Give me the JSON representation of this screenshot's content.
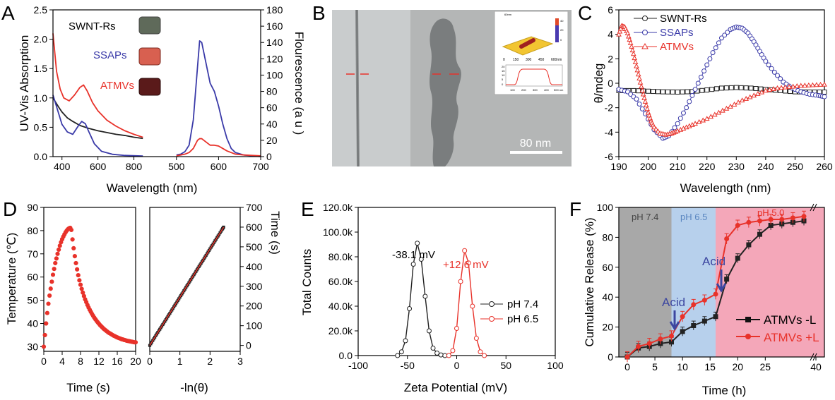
{
  "panels": {
    "A": {
      "label": "A",
      "ylabel_left": "UV-Vis Absorption",
      "ylabel_right": "Flourescence (a u )",
      "xlabel": "Wavelength (nm)",
      "legend": [
        "SWNT-Rs",
        "SSAPs",
        "ATMVs"
      ]
    },
    "B": {
      "label": "B",
      "scalebar": "80 nm",
      "inset_axis": [
        "0",
        "150",
        "300",
        "450",
        "600nm"
      ],
      "inset_zbar": [
        "60nm",
        "40",
        "20",
        "0"
      ],
      "inset_profile_axis": [
        "100",
        "200",
        "300",
        "400",
        "500 nm"
      ],
      "inset_profile_yaxis": [
        "20",
        "15",
        "10",
        "5",
        "0"
      ]
    },
    "C": {
      "label": "C",
      "ylabel": "θ/mdeg",
      "xlabel": "Wavelength (nm)",
      "legend": [
        "SWNT-Rs",
        "SSAPs",
        "ATMVs"
      ]
    },
    "D": {
      "label": "D",
      "ylabel_left": "Temperature (℃)",
      "xlabel_left": "Time (s)",
      "ylabel_right": "Time (s)",
      "xlabel_right": "-ln(θ)"
    },
    "E": {
      "label": "E",
      "ylabel": "Total Counts",
      "xlabel": "Zeta Potential (mV)",
      "legend": [
        "pH 7.4",
        "pH 6.5"
      ],
      "ann1": "-38.1 mV",
      "ann2": "+12.6 mV"
    },
    "F": {
      "label": "F",
      "ylabel": "Cumulative Release (%)",
      "xlabel": "Time (h)",
      "legend": [
        "ATMVs -L",
        "ATMVs +L"
      ],
      "zone1": "pH 7.4",
      "zone2": "pH 6.5",
      "zone3": "pH 5.0",
      "arrow1": "Acid",
      "arrow2": "Acid"
    }
  },
  "colors": {
    "black": "#222222",
    "blue": "#3a3aa8",
    "red": "#e8322a",
    "zone_gray": "#a8a8a8",
    "zone_blue": "#b7d0ec",
    "zone_pink": "#f4a7b9",
    "arrow": "#3c46a0"
  },
  "chart_data": [
    {
      "id": "A-absorption",
      "type": "line",
      "xlim": [
        350,
        900
      ],
      "ylim": [
        0,
        2.5
      ],
      "xticks": [
        400,
        600,
        800
      ],
      "yticks": [
        0.0,
        0.5,
        1.0,
        1.5,
        2.0,
        2.5
      ],
      "series": [
        {
          "name": "SWNT-Rs",
          "color": "black",
          "x": [
            350,
            380,
            400,
            430,
            460,
            500,
            550,
            600,
            650,
            700,
            750,
            800,
            850
          ],
          "y": [
            1.0,
            0.85,
            0.76,
            0.66,
            0.6,
            0.53,
            0.48,
            0.44,
            0.41,
            0.38,
            0.36,
            0.33,
            0.31
          ]
        },
        {
          "name": "SSAPs",
          "color": "blue",
          "x": [
            350,
            380,
            400,
            430,
            460,
            490,
            510,
            530,
            550,
            580,
            620,
            680,
            750,
            850
          ],
          "y": [
            1.05,
            0.75,
            0.55,
            0.42,
            0.38,
            0.52,
            0.6,
            0.56,
            0.42,
            0.22,
            0.09,
            0.04,
            0.02,
            0.01
          ]
        },
        {
          "name": "ATMVs",
          "color": "red",
          "x": [
            350,
            370,
            390,
            410,
            440,
            470,
            500,
            520,
            540,
            570,
            600,
            650,
            700,
            750,
            800,
            850
          ],
          "y": [
            2.1,
            1.45,
            1.15,
            1.0,
            0.95,
            1.05,
            1.18,
            1.22,
            1.12,
            0.92,
            0.78,
            0.62,
            0.52,
            0.44,
            0.38,
            0.33
          ]
        }
      ]
    },
    {
      "id": "A-fluorescence",
      "type": "line",
      "xlim": [
        450,
        700
      ],
      "ylim": [
        0,
        180
      ],
      "xticks": [
        500,
        600,
        700
      ],
      "yticks": [
        0,
        20,
        40,
        60,
        80,
        100,
        120,
        140,
        160,
        180
      ],
      "series": [
        {
          "name": "SSAPs",
          "color": "blue",
          "x": [
            500,
            510,
            520,
            530,
            540,
            550,
            555,
            560,
            570,
            580,
            590,
            600,
            610,
            620,
            630,
            640,
            660,
            680,
            700
          ],
          "y": [
            2,
            3,
            6,
            14,
            45,
            110,
            142,
            140,
            115,
            90,
            80,
            62,
            40,
            22,
            10,
            5,
            2,
            1,
            0
          ]
        },
        {
          "name": "ATMVs",
          "color": "red",
          "x": [
            500,
            510,
            520,
            530,
            540,
            550,
            555,
            560,
            570,
            580,
            590,
            600,
            610,
            620,
            640,
            660,
            700
          ],
          "y": [
            1,
            2,
            3,
            5,
            10,
            20,
            22,
            22,
            18,
            14,
            14,
            13,
            10,
            7,
            3,
            2,
            1
          ]
        }
      ]
    },
    {
      "id": "C-cd",
      "type": "scatter",
      "xlim": [
        190,
        260
      ],
      "ylim": [
        -6,
        6
      ],
      "xticks": [
        190,
        200,
        210,
        220,
        230,
        240,
        250,
        260
      ],
      "yticks": [
        -6,
        -4,
        -2,
        0,
        2,
        4,
        6
      ],
      "series": [
        {
          "name": "SWNT-Rs",
          "color": "black",
          "x": [
            190,
            195,
            200,
            205,
            210,
            215,
            220,
            225,
            230,
            235,
            240,
            245,
            250,
            255,
            260
          ],
          "y": [
            -0.6,
            -0.6,
            -0.65,
            -0.7,
            -0.72,
            -0.68,
            -0.55,
            -0.4,
            -0.35,
            -0.4,
            -0.5,
            -0.6,
            -0.7,
            -0.72,
            -0.72
          ]
        },
        {
          "name": "SSAPs",
          "color": "blue",
          "x": [
            190,
            193,
            196,
            199,
            202,
            205,
            207,
            210,
            213,
            216,
            219,
            222,
            225,
            228,
            230,
            232,
            234,
            236,
            238,
            240,
            243,
            246,
            249,
            252,
            255,
            258,
            260
          ],
          "y": [
            -0.5,
            -0.7,
            -1.3,
            -2.5,
            -3.8,
            -4.5,
            -4.3,
            -3.3,
            -2.0,
            -0.5,
            1.0,
            2.5,
            3.7,
            4.4,
            4.6,
            4.5,
            4.1,
            3.4,
            2.6,
            1.8,
            0.9,
            0.1,
            -0.4,
            -0.7,
            -0.9,
            -1.0,
            -1.1
          ]
        },
        {
          "name": "ATMVs",
          "color": "red",
          "x": [
            190,
            191,
            192,
            193,
            194,
            195,
            196,
            197,
            198,
            199,
            200,
            201,
            202,
            204,
            206,
            208,
            210,
            213,
            216,
            220,
            224,
            228,
            232,
            236,
            240,
            244,
            248,
            252,
            256,
            260
          ],
          "y": [
            4.0,
            4.7,
            4.6,
            4.1,
            3.3,
            2.4,
            1.4,
            0.4,
            -0.6,
            -1.5,
            -2.4,
            -3.1,
            -3.6,
            -4.1,
            -4.2,
            -4.1,
            -3.9,
            -3.6,
            -3.3,
            -2.9,
            -2.4,
            -1.9,
            -1.4,
            -1.0,
            -0.6,
            -0.4,
            -0.3,
            -0.2,
            -0.15,
            -0.1
          ]
        }
      ]
    },
    {
      "id": "D-heating",
      "type": "scatter",
      "xlim": [
        0,
        20
      ],
      "ylim": [
        28,
        90
      ],
      "xticks": [
        0,
        4,
        8,
        12,
        16,
        20
      ],
      "yticks": [
        30,
        40,
        50,
        60,
        70,
        80,
        90
      ],
      "series": [
        {
          "name": "",
          "color": "red",
          "x": [
            0,
            0.25,
            0.5,
            0.75,
            1,
            1.25,
            1.5,
            1.75,
            2,
            2.25,
            2.5,
            2.75,
            3,
            3.25,
            3.5,
            3.75,
            4,
            4.25,
            4.5,
            4.75,
            5,
            5.25,
            5.5,
            5.75,
            6,
            6.25,
            6.5,
            6.75,
            7,
            7.25,
            7.5,
            7.75,
            8,
            8.25,
            8.5,
            8.75,
            9,
            9.25,
            9.5,
            9.75,
            10,
            10.25,
            10.5,
            10.75,
            11,
            11.25,
            11.5,
            11.75,
            12,
            12.25,
            12.5,
            12.75,
            13,
            13.25,
            13.5,
            13.75,
            14,
            14.25,
            14.5,
            14.75,
            15,
            15.25,
            15.5,
            15.75,
            16,
            16.25,
            16.5,
            16.75,
            17,
            17.25,
            17.5,
            17.75,
            18,
            18.25,
            18.5,
            18.75,
            19,
            19.25,
            19.5,
            19.75,
            20
          ],
          "y": [
            30,
            35,
            40,
            44.5,
            48.5,
            52,
            55,
            58,
            61,
            63.5,
            66,
            68,
            70,
            71.8,
            73.5,
            75,
            76.3,
            77.4,
            78.4,
            79.3,
            80,
            80.6,
            81,
            81.2,
            80.3,
            76.2,
            72.4,
            69.0,
            66.0,
            63.3,
            60.8,
            58.6,
            56.7,
            54.9,
            53.3,
            51.8,
            50.4,
            49.2,
            48.0,
            46.9,
            45.9,
            45.0,
            44.1,
            43.3,
            42.5,
            41.8,
            41.1,
            40.5,
            39.9,
            39.3,
            38.8,
            38.3,
            37.8,
            37.4,
            37.0,
            36.6,
            36.2,
            35.9,
            35.6,
            35.3,
            35.0,
            34.7,
            34.5,
            34.2,
            34.0,
            33.8,
            33.6,
            33.4,
            33.2,
            33.1,
            32.9,
            32.8,
            32.6,
            32.5,
            32.4,
            32.3,
            32.2,
            32.1,
            32.0,
            31.9,
            31.9
          ]
        }
      ]
    },
    {
      "id": "D-linear-fit",
      "type": "scatter",
      "xlim": [
        0,
        3
      ],
      "ylim": [
        -30,
        700
      ],
      "xticks": [
        0,
        1,
        2,
        3
      ],
      "yticks": [
        0,
        100,
        200,
        300,
        400,
        500,
        600,
        700
      ],
      "series": [
        {
          "name": "",
          "color": "black",
          "x": [
            0,
            0.1,
            0.2,
            0.3,
            0.4,
            0.5,
            0.6,
            0.7,
            0.8,
            0.9,
            1.0,
            1.1,
            1.2,
            1.3,
            1.4,
            1.5,
            1.6,
            1.7,
            1.8,
            1.9,
            2.0,
            2.1,
            2.2,
            2.3,
            2.4,
            2.45
          ],
          "y": [
            0,
            25,
            50,
            74,
            98,
            122,
            147,
            171,
            196,
            220,
            245,
            269,
            294,
            318,
            343,
            367,
            392,
            416,
            440,
            465,
            490,
            514,
            539,
            563,
            588,
            600
          ]
        }
      ]
    },
    {
      "id": "E-zeta",
      "type": "line",
      "xlim": [
        -100,
        100
      ],
      "ylim": [
        0,
        120000
      ],
      "xticks": [
        -100,
        -50,
        0,
        50,
        100
      ],
      "yticks": [
        0,
        20000,
        40000,
        60000,
        80000,
        100000,
        120000
      ],
      "ytick_labels": [
        "0.0",
        "20.0k",
        "40.0k",
        "60.0k",
        "80.0k",
        "100.0k",
        "120.0k"
      ],
      "series": [
        {
          "name": "pH 7.4",
          "color": "black",
          "x": [
            -60,
            -56,
            -52,
            -48,
            -44,
            -40,
            -36,
            -32,
            -28,
            -24,
            -20,
            -16,
            -12
          ],
          "y": [
            0,
            3000,
            12000,
            38000,
            74000,
            91000,
            78000,
            48000,
            20000,
            6000,
            2000,
            500,
            0
          ]
        },
        {
          "name": "pH 6.5",
          "color": "red",
          "x": [
            -8,
            -4,
            0,
            4,
            8,
            12,
            16,
            20,
            24,
            28
          ],
          "y": [
            0,
            4000,
            22000,
            60000,
            85000,
            75000,
            40000,
            14000,
            3000,
            0
          ]
        }
      ]
    },
    {
      "id": "F-release",
      "type": "line",
      "xlim": [
        -1,
        41
      ],
      "ylim": [
        0,
        100
      ],
      "xticks": [
        0,
        5,
        10,
        15,
        20,
        25,
        40
      ],
      "xtick_labels": [
        "0",
        "5",
        "10",
        "15",
        "20",
        "25",
        "40"
      ],
      "yticks": [
        0,
        20,
        40,
        60,
        80,
        100
      ],
      "series": [
        {
          "name": "ATMVs -L",
          "color": "black",
          "x": [
            0,
            2,
            4,
            6,
            8,
            10,
            12,
            14,
            16,
            18,
            20,
            22,
            24,
            26,
            28,
            30,
            32
          ],
          "y": [
            0,
            6,
            7,
            9,
            10,
            17,
            21,
            24,
            27,
            52,
            66,
            75,
            82,
            88,
            89,
            90,
            91
          ]
        },
        {
          "name": "ATMVs +L",
          "color": "red",
          "x": [
            0,
            2,
            4,
            6,
            8,
            10,
            12,
            14,
            16,
            18,
            20,
            22,
            24,
            26,
            28,
            30,
            32
          ],
          "y": [
            0,
            7,
            9,
            12,
            14,
            27,
            35,
            38,
            42,
            79,
            88,
            90,
            91,
            92,
            92,
            93,
            94
          ]
        }
      ]
    }
  ]
}
